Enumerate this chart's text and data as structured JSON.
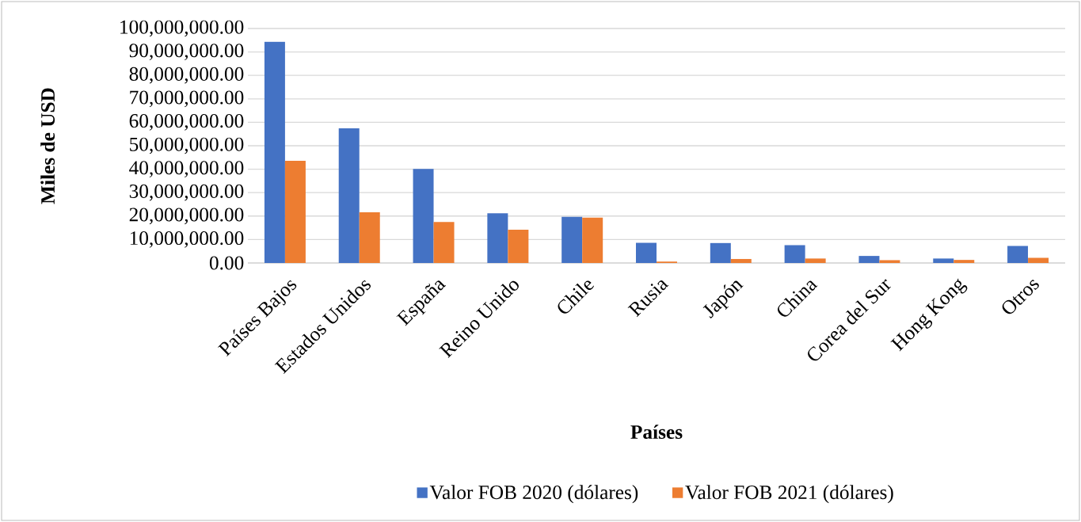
{
  "chart_data": {
    "type": "bar",
    "xlabel": "Países",
    "ylabel": "Miles de USD",
    "categories": [
      "Países Bajos",
      "Estados Unidos",
      "España",
      "Reino Unido",
      "Chile",
      "Rusia",
      "Japón",
      "China",
      "Corea del Sur",
      "Hong Kong",
      "Otros"
    ],
    "series": [
      {
        "name": "Valor FOB 2020 (dólares)",
        "color": "#4472c4",
        "values": [
          94300000,
          57400000,
          40100000,
          21200000,
          19700000,
          8600000,
          8500000,
          7600000,
          3000000,
          1900000,
          7300000
        ]
      },
      {
        "name": "Valor FOB 2021 (dólares)",
        "color": "#ed7d31",
        "values": [
          43600000,
          21600000,
          17500000,
          14200000,
          19300000,
          600000,
          1700000,
          1900000,
          1200000,
          1300000,
          2200000
        ]
      }
    ],
    "ylim": [
      0,
      100000000
    ],
    "yticks": [
      {
        "value": 0,
        "label": "0.00"
      },
      {
        "value": 10000000,
        "label": "10,000,000.00"
      },
      {
        "value": 20000000,
        "label": "20,000,000.00"
      },
      {
        "value": 30000000,
        "label": "30,000,000.00"
      },
      {
        "value": 40000000,
        "label": "40,000,000.00"
      },
      {
        "value": 50000000,
        "label": "50,000,000.00"
      },
      {
        "value": 60000000,
        "label": "60,000,000.00"
      },
      {
        "value": 70000000,
        "label": "70,000,000.00"
      },
      {
        "value": 80000000,
        "label": "80,000,000.00"
      },
      {
        "value": 90000000,
        "label": "90,000,000.00"
      },
      {
        "value": 100000000,
        "label": "100,000,000.00"
      }
    ],
    "grid": "y",
    "legend": "bottom"
  }
}
